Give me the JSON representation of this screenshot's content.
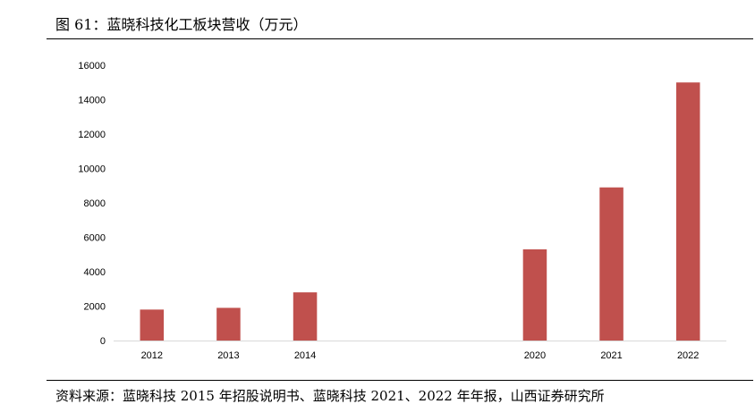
{
  "figure": {
    "title": "图 61：蓝晓科技化工板块营收（万元）",
    "source": "资料来源：蓝晓科技 2015 年招股说明书、蓝晓科技 2021、2022 年年报，山西证券研究所"
  },
  "chart_data": {
    "type": "bar",
    "categories": [
      "2012",
      "2013",
      "2014",
      "",
      "",
      "2020",
      "2021",
      "2022"
    ],
    "values": [
      1800,
      1900,
      2800,
      null,
      null,
      5300,
      8900,
      15000
    ],
    "ylim": [
      0,
      16000
    ],
    "yticks": [
      0,
      2000,
      4000,
      6000,
      8000,
      10000,
      12000,
      14000,
      16000
    ],
    "grid": false,
    "legend": "none",
    "bar_color": "#C0504D"
  }
}
